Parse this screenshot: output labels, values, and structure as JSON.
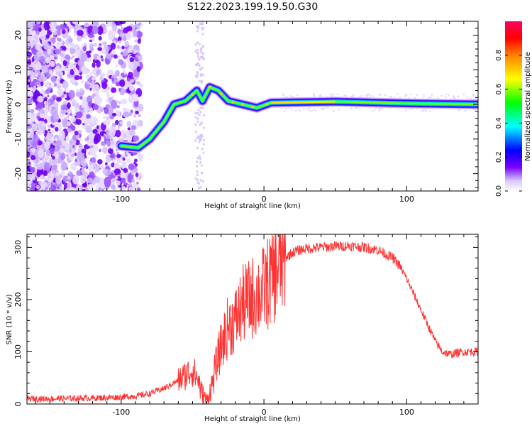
{
  "title": "S122.2023.199.19.50.G30",
  "chart_data": [
    {
      "type": "heatmap",
      "xlabel": "Height of straight line (km)",
      "ylabel": "Frequency (Hz)",
      "xlim": [
        -166,
        150
      ],
      "ylim": [
        -25,
        24
      ],
      "xticks": [
        -100,
        0,
        100
      ],
      "yticks": [
        -20,
        -10,
        0,
        10,
        20
      ],
      "colorbar": {
        "label": "Normalized spectral amplitude",
        "range": [
          0,
          1
        ],
        "ticks": [
          "0.0",
          "0.2",
          "0.4",
          "0.6",
          "0.8"
        ]
      },
      "ridge": {
        "description_points": [
          {
            "x": -100,
            "y": -12
          },
          {
            "x": -88,
            "y": -12.5
          },
          {
            "x": -80,
            "y": -10
          },
          {
            "x": -70,
            "y": -5
          },
          {
            "x": -63,
            "y": 0
          },
          {
            "x": -55,
            "y": 1
          },
          {
            "x": -47,
            "y": 4
          },
          {
            "x": -43,
            "y": 1
          },
          {
            "x": -38,
            "y": 5
          },
          {
            "x": -32,
            "y": 4
          },
          {
            "x": -25,
            "y": 1
          },
          {
            "x": -15,
            "y": 0
          },
          {
            "x": -5,
            "y": -1
          },
          {
            "x": 5,
            "y": 0.5
          },
          {
            "x": 50,
            "y": 0.8
          },
          {
            "x": 100,
            "y": 0.3
          },
          {
            "x": 150,
            "y": 0
          }
        ]
      }
    },
    {
      "type": "line",
      "xlabel": "Height of straight line (km)",
      "ylabel": "SNR (10 * v/v)",
      "xlim": [
        -166,
        150
      ],
      "ylim": [
        0,
        325
      ],
      "xticks": [
        -100,
        0,
        100
      ],
      "yticks": [
        0,
        100,
        200,
        300
      ],
      "color": "#ff3333",
      "series": [
        {
          "x": [
            -166,
            -150,
            -130,
            -110,
            -90,
            -80,
            -70,
            -60,
            -50,
            -45,
            -40,
            -35,
            -30,
            -25,
            -20,
            -15,
            -10,
            -5,
            0,
            5,
            10,
            15,
            20,
            25,
            30,
            40,
            50,
            60,
            70,
            80,
            90,
            95,
            100,
            105,
            110,
            115,
            120,
            125,
            130,
            140,
            150
          ],
          "values": [
            10,
            10,
            11,
            12,
            15,
            20,
            30,
            45,
            65,
            40,
            15,
            60,
            110,
            150,
            160,
            190,
            200,
            210,
            220,
            240,
            260,
            280,
            290,
            295,
            298,
            300,
            302,
            303,
            300,
            295,
            280,
            265,
            240,
            210,
            180,
            150,
            120,
            100,
            95,
            100,
            100
          ]
        }
      ]
    }
  ]
}
